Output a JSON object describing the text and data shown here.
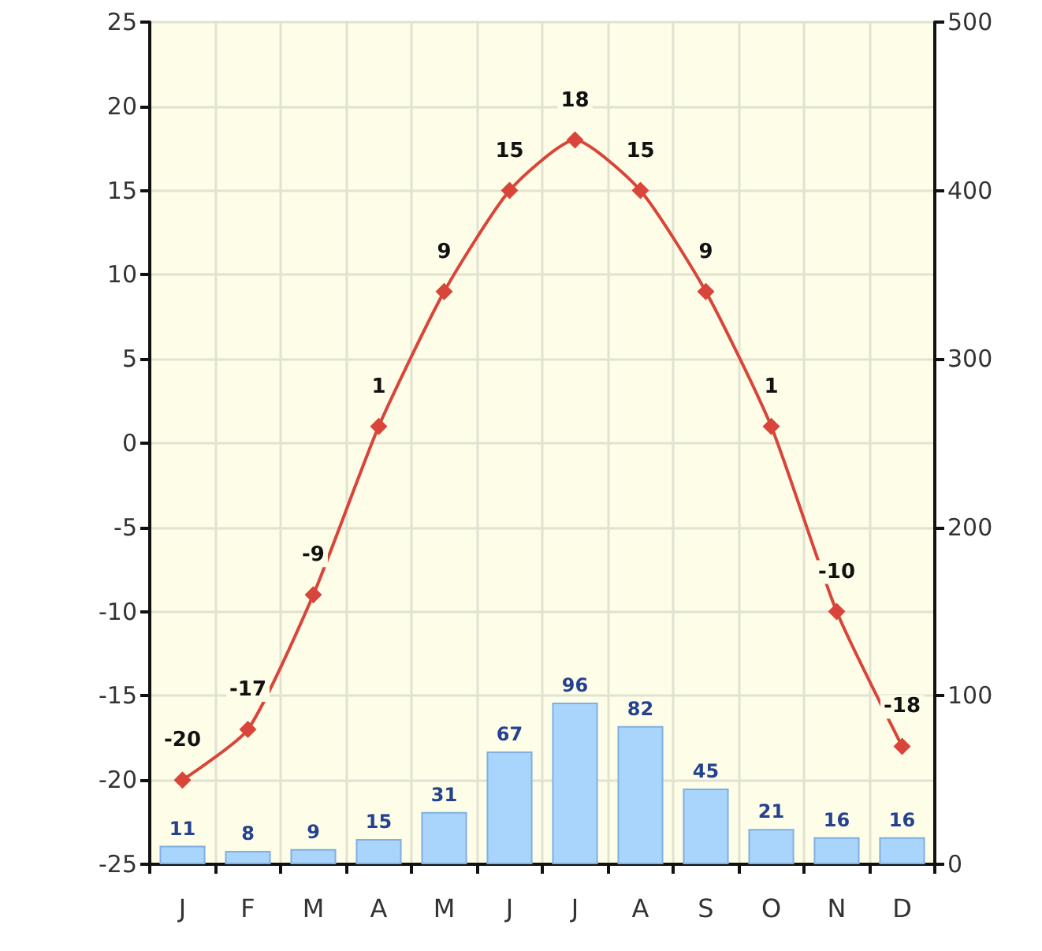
{
  "chart_data": {
    "type": "bar",
    "categories": [
      "J",
      "F",
      "M",
      "A",
      "M",
      "J",
      "J",
      "A",
      "S",
      "O",
      "N",
      "D"
    ],
    "series": [
      {
        "axis": "y2",
        "color": "#a9d4fb",
        "values": [
          11,
          8,
          9,
          15,
          31,
          67,
          96,
          82,
          45,
          21,
          16,
          16
        ]
      },
      {
        "type": "line",
        "axis": "y",
        "color": "#d9453a",
        "values": [
          -20,
          -17,
          -9,
          1,
          9,
          15,
          18,
          15,
          9,
          1,
          -10,
          -18
        ]
      }
    ],
    "ylim": [
      -25,
      25
    ],
    "yticks": [
      -25,
      -20,
      -15,
      -10,
      -5,
      0,
      5,
      10,
      15,
      20,
      25
    ],
    "y2lim": [
      0,
      500
    ],
    "y2ticks": [
      0,
      100,
      200,
      300,
      400,
      500
    ],
    "data_labels": true,
    "grid": true,
    "marker": "diamond",
    "line_style": "solid"
  }
}
